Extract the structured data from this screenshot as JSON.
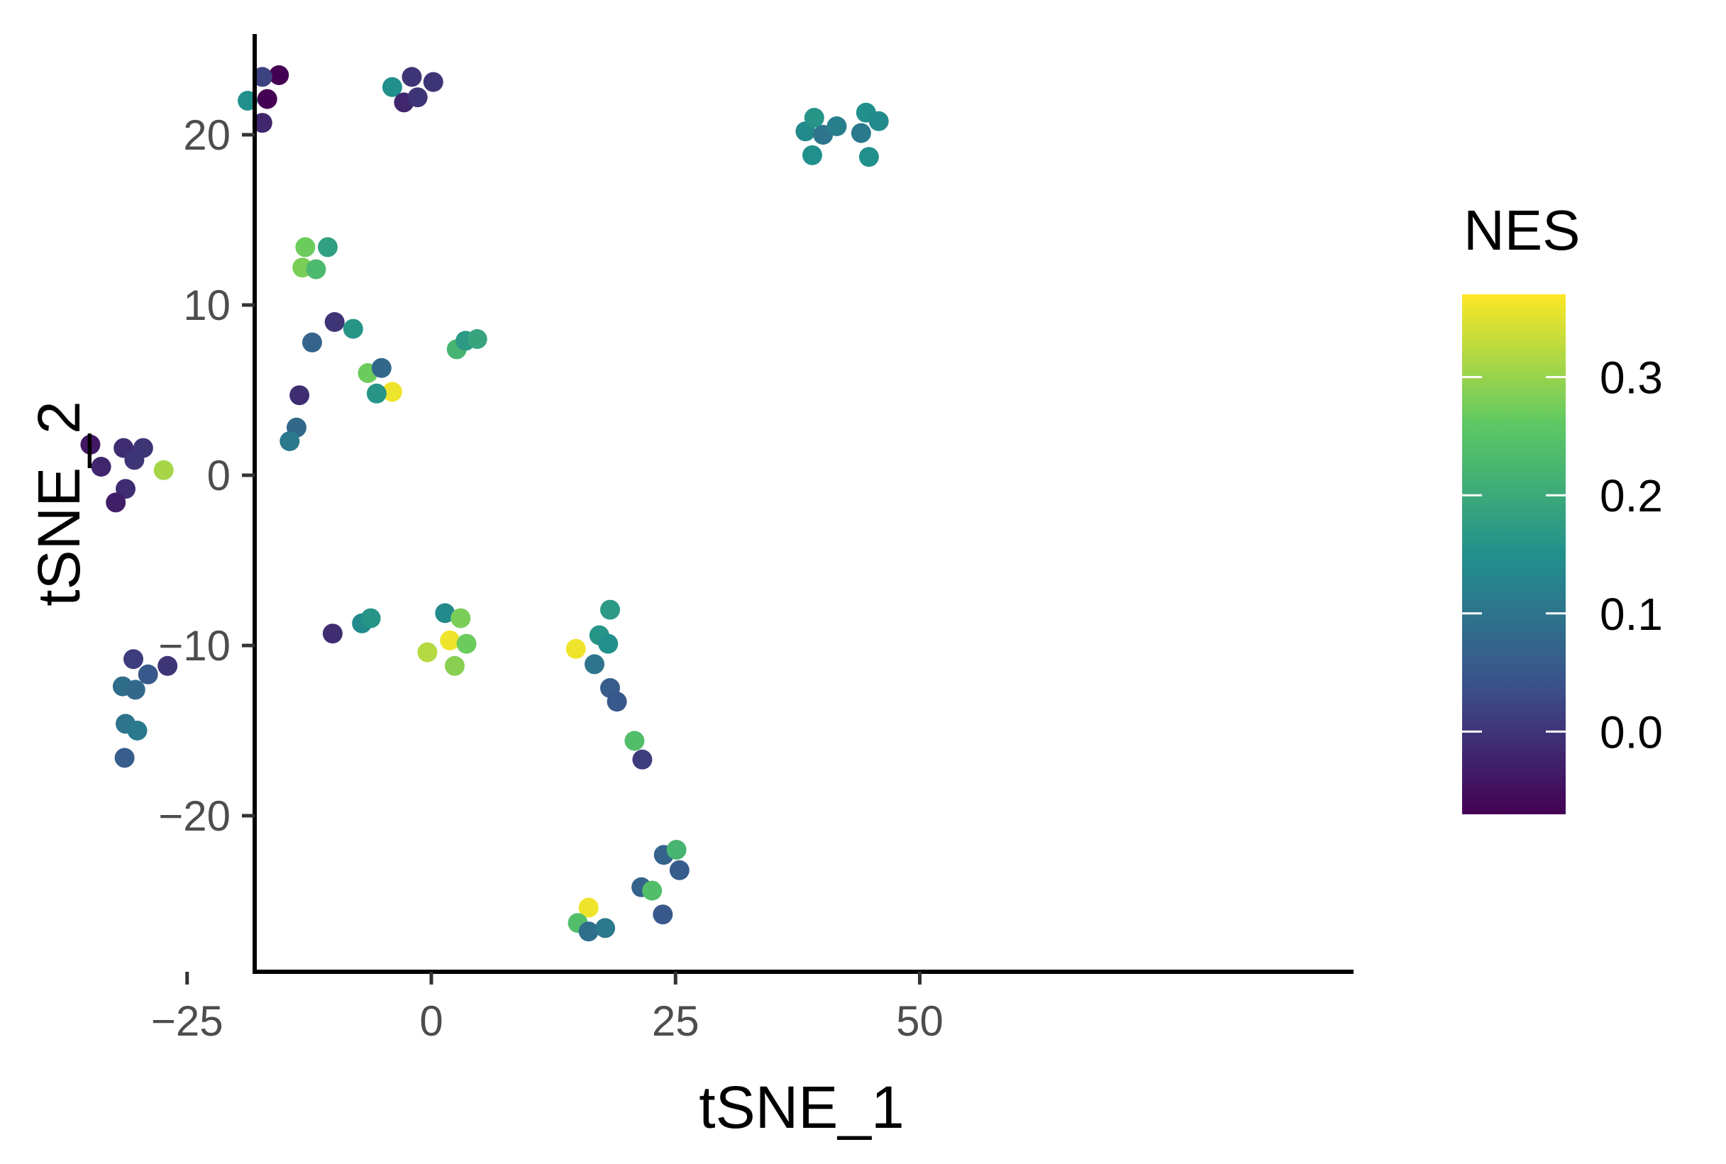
{
  "chart_data": {
    "type": "scatter",
    "title": "",
    "xlabel": "tSNE_1",
    "ylabel": "tSNE_2",
    "xlim": [
      -39,
      50
    ],
    "ylim": [
      -29,
      26
    ],
    "x_ticks": [
      -25,
      0,
      25,
      50
    ],
    "y_ticks": [
      -20,
      -10,
      0,
      10,
      20
    ],
    "x_tick_labels": [
      "−25",
      "0",
      "25",
      "50"
    ],
    "y_tick_labels": [
      "−20",
      "−10",
      "0",
      "10",
      "20"
    ],
    "grid": false,
    "legend": {
      "title": "NES",
      "placement": "right",
      "type": "colorbar",
      "range": [
        -0.07,
        0.37
      ],
      "ticks": [
        0.0,
        0.1,
        0.2,
        0.3
      ],
      "tick_labels": [
        "0.0",
        "0.1",
        "0.2",
        "0.3"
      ],
      "palette": "viridis",
      "colors": [
        "#440154",
        "#3B528B",
        "#21908C",
        "#5DC863",
        "#FDE725"
      ]
    },
    "points": [
      {
        "x": -15.6,
        "y": 23.5,
        "nes": -0.07
      },
      {
        "x": -17.3,
        "y": 23.4,
        "nes": 0.02
      },
      {
        "x": -16.8,
        "y": 22.1,
        "nes": -0.07
      },
      {
        "x": -18.8,
        "y": 22.0,
        "nes": 0.15
      },
      {
        "x": -17.3,
        "y": 20.7,
        "nes": -0.02
      },
      {
        "x": -4.0,
        "y": 22.8,
        "nes": 0.15
      },
      {
        "x": -2.0,
        "y": 23.4,
        "nes": 0.0
      },
      {
        "x": -2.8,
        "y": 21.9,
        "nes": -0.02
      },
      {
        "x": -1.4,
        "y": 22.2,
        "nes": 0.0
      },
      {
        "x": 0.2,
        "y": 23.1,
        "nes": 0.0
      },
      {
        "x": 38.3,
        "y": 20.2,
        "nes": 0.14
      },
      {
        "x": 39.2,
        "y": 21.0,
        "nes": 0.16
      },
      {
        "x": 40.1,
        "y": 20.0,
        "nes": 0.1
      },
      {
        "x": 41.5,
        "y": 20.5,
        "nes": 0.12
      },
      {
        "x": 39.0,
        "y": 18.8,
        "nes": 0.15
      },
      {
        "x": 44.0,
        "y": 20.1,
        "nes": 0.11
      },
      {
        "x": 44.5,
        "y": 21.3,
        "nes": 0.15
      },
      {
        "x": 45.8,
        "y": 20.8,
        "nes": 0.14
      },
      {
        "x": 44.8,
        "y": 18.7,
        "nes": 0.15
      },
      {
        "x": -12.9,
        "y": 13.4,
        "nes": 0.27
      },
      {
        "x": -10.6,
        "y": 13.4,
        "nes": 0.18
      },
      {
        "x": -13.2,
        "y": 12.2,
        "nes": 0.28
      },
      {
        "x": -11.8,
        "y": 12.1,
        "nes": 0.23
      },
      {
        "x": -9.9,
        "y": 9.0,
        "nes": 0.0
      },
      {
        "x": -8.0,
        "y": 8.6,
        "nes": 0.16
      },
      {
        "x": -12.2,
        "y": 7.8,
        "nes": 0.07
      },
      {
        "x": 2.6,
        "y": 7.4,
        "nes": 0.22
      },
      {
        "x": 3.5,
        "y": 7.9,
        "nes": 0.17
      },
      {
        "x": 4.7,
        "y": 8.0,
        "nes": 0.19
      },
      {
        "x": -6.5,
        "y": 6.0,
        "nes": 0.27
      },
      {
        "x": -5.1,
        "y": 6.3,
        "nes": 0.08
      },
      {
        "x": -4.0,
        "y": 4.9,
        "nes": 0.36
      },
      {
        "x": -5.6,
        "y": 4.8,
        "nes": 0.16
      },
      {
        "x": -13.5,
        "y": 4.7,
        "nes": -0.01
      },
      {
        "x": -13.8,
        "y": 2.8,
        "nes": 0.08
      },
      {
        "x": -14.5,
        "y": 2.0,
        "nes": 0.11
      },
      {
        "x": -34.9,
        "y": 1.8,
        "nes": -0.04
      },
      {
        "x": -31.5,
        "y": 1.6,
        "nes": -0.01
      },
      {
        "x": -29.5,
        "y": 1.6,
        "nes": 0.0
      },
      {
        "x": -33.8,
        "y": 0.5,
        "nes": -0.02
      },
      {
        "x": -30.4,
        "y": 0.9,
        "nes": 0.0
      },
      {
        "x": -27.4,
        "y": 0.3,
        "nes": 0.31
      },
      {
        "x": -31.3,
        "y": -0.8,
        "nes": -0.01
      },
      {
        "x": -32.3,
        "y": -1.6,
        "nes": -0.03
      },
      {
        "x": -10.1,
        "y": -9.3,
        "nes": -0.01
      },
      {
        "x": -7.1,
        "y": -8.7,
        "nes": 0.14
      },
      {
        "x": -6.2,
        "y": -8.4,
        "nes": 0.16
      },
      {
        "x": 1.4,
        "y": -8.1,
        "nes": 0.14
      },
      {
        "x": 3.0,
        "y": -8.4,
        "nes": 0.28
      },
      {
        "x": -0.4,
        "y": -10.4,
        "nes": 0.32
      },
      {
        "x": 1.9,
        "y": -9.7,
        "nes": 0.36
      },
      {
        "x": 3.6,
        "y": -9.9,
        "nes": 0.27
      },
      {
        "x": 2.4,
        "y": -11.2,
        "nes": 0.29
      },
      {
        "x": -30.5,
        "y": -10.8,
        "nes": 0.01
      },
      {
        "x": -29.0,
        "y": -11.7,
        "nes": 0.05
      },
      {
        "x": -27.0,
        "y": -11.2,
        "nes": 0.0
      },
      {
        "x": -31.6,
        "y": -12.4,
        "nes": 0.09
      },
      {
        "x": -30.3,
        "y": -12.6,
        "nes": 0.08
      },
      {
        "x": -31.3,
        "y": -14.6,
        "nes": 0.1
      },
      {
        "x": -30.1,
        "y": -15.0,
        "nes": 0.11
      },
      {
        "x": -31.4,
        "y": -16.6,
        "nes": 0.06
      },
      {
        "x": 18.3,
        "y": -7.9,
        "nes": 0.17
      },
      {
        "x": 17.2,
        "y": -9.4,
        "nes": 0.16
      },
      {
        "x": 18.1,
        "y": -9.9,
        "nes": 0.15
      },
      {
        "x": 14.8,
        "y": -10.2,
        "nes": 0.36
      },
      {
        "x": 16.7,
        "y": -11.1,
        "nes": 0.1
      },
      {
        "x": 18.3,
        "y": -12.5,
        "nes": 0.06
      },
      {
        "x": 19.0,
        "y": -13.3,
        "nes": 0.05
      },
      {
        "x": 20.8,
        "y": -15.6,
        "nes": 0.24
      },
      {
        "x": 21.6,
        "y": -16.7,
        "nes": 0.01
      },
      {
        "x": 23.8,
        "y": -22.3,
        "nes": 0.07
      },
      {
        "x": 25.1,
        "y": -22.0,
        "nes": 0.22
      },
      {
        "x": 25.4,
        "y": -23.2,
        "nes": 0.06
      },
      {
        "x": 21.5,
        "y": -24.2,
        "nes": 0.07
      },
      {
        "x": 22.6,
        "y": -24.4,
        "nes": 0.24
      },
      {
        "x": 23.7,
        "y": -25.8,
        "nes": 0.05
      },
      {
        "x": 16.1,
        "y": -25.4,
        "nes": 0.36
      },
      {
        "x": 15.0,
        "y": -26.3,
        "nes": 0.24
      },
      {
        "x": 16.1,
        "y": -26.8,
        "nes": 0.09
      },
      {
        "x": 17.8,
        "y": -26.6,
        "nes": 0.11
      }
    ]
  }
}
